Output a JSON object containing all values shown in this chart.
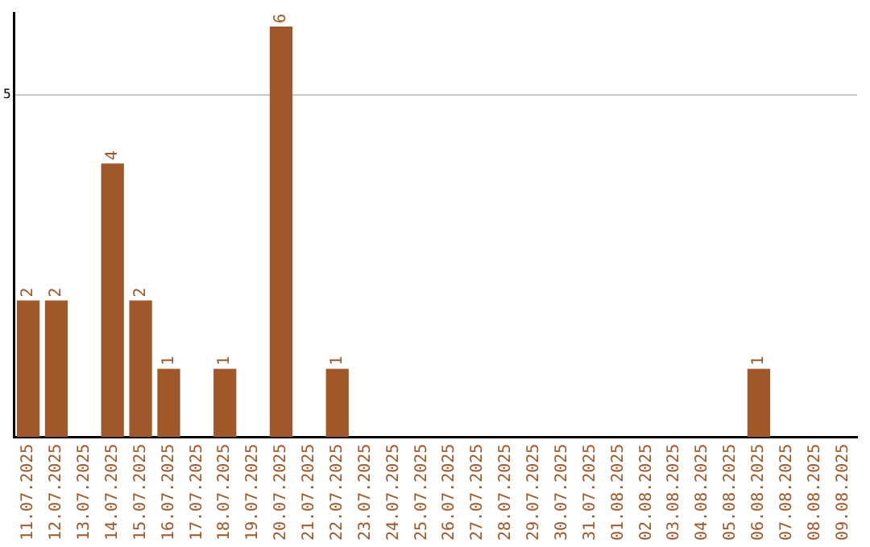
{
  "chart_data": {
    "type": "bar",
    "categories": [
      "11.07.2025",
      "12.07.2025",
      "13.07.2025",
      "14.07.2025",
      "15.07.2025",
      "16.07.2025",
      "17.07.2025",
      "18.07.2025",
      "19.07.2025",
      "20.07.2025",
      "21.07.2025",
      "22.07.2025",
      "23.07.2025",
      "24.07.2025",
      "25.07.2025",
      "26.07.2025",
      "27.07.2025",
      "28.07.2025",
      "29.07.2025",
      "30.07.2025",
      "31.07.2025",
      "01.08.2025",
      "02.08.2025",
      "03.08.2025",
      "04.08.2025",
      "05.08.2025",
      "06.08.2025",
      "07.08.2025",
      "08.08.2025",
      "09.08.2025"
    ],
    "values": [
      2,
      2,
      0,
      4,
      2,
      1,
      0,
      1,
      0,
      6,
      0,
      1,
      0,
      0,
      0,
      0,
      0,
      0,
      0,
      0,
      0,
      0,
      0,
      0,
      0,
      0,
      1,
      0,
      0,
      0
    ],
    "value_labels": [
      "2",
      "2",
      null,
      "4",
      "2",
      "1",
      null,
      "1",
      null,
      "6",
      null,
      "1",
      null,
      null,
      null,
      null,
      null,
      null,
      null,
      null,
      null,
      null,
      null,
      null,
      null,
      null,
      "1",
      null,
      null,
      null
    ],
    "color": "#a0582a",
    "ylim": [
      0,
      6.2
    ],
    "yticks": [
      5
    ],
    "grid": "y",
    "legend": false
  }
}
